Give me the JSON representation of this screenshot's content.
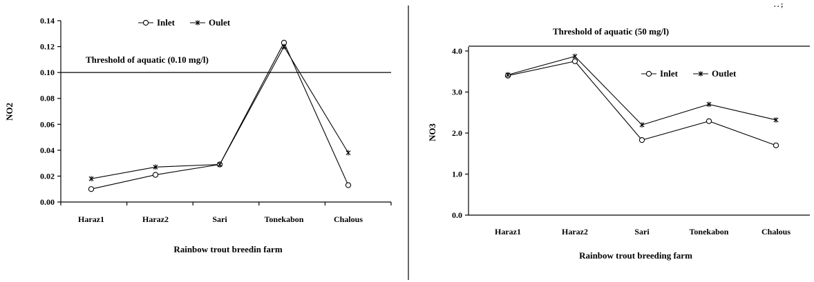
{
  "corner_mark": ". . ;",
  "chart_data": [
    {
      "type": "line",
      "categories": [
        "Haraz1",
        "Haraz2",
        "Sari",
        "Tonekabon",
        "Chalous"
      ],
      "series": [
        {
          "name": "Inlet",
          "marker": "circle",
          "values": [
            0.01,
            0.021,
            0.029,
            0.123,
            0.013
          ]
        },
        {
          "name": "Oulet",
          "marker": "x",
          "values": [
            0.018,
            0.027,
            0.029,
            0.12,
            0.038
          ]
        }
      ],
      "ylabel": "NO2",
      "xlabel": "Rainbow trout breedin farm",
      "ylim": [
        0,
        0.14
      ],
      "yticks": [
        "0.00",
        "0.02",
        "0.04",
        "0.06",
        "0.08",
        "0.10",
        "0.12",
        "0.14"
      ],
      "threshold": {
        "value": 0.1,
        "label": "Threshold of aquatic (0.10 mg/l)"
      },
      "legend_position": "top",
      "grid": false,
      "line_color": "#000000"
    },
    {
      "type": "line",
      "categories": [
        "Haraz1",
        "Haraz2",
        "Sari",
        "Tonekabon",
        "Chalous"
      ],
      "series": [
        {
          "name": "Inlet",
          "marker": "circle",
          "values": [
            3.4,
            3.75,
            1.83,
            2.29,
            1.7
          ]
        },
        {
          "name": "Outlet",
          "marker": "x",
          "values": [
            3.42,
            3.87,
            2.2,
            2.7,
            2.32
          ]
        }
      ],
      "ylabel": "NO3",
      "xlabel": "Rainbow trout breeding farm",
      "ylim": [
        0,
        4.0
      ],
      "yticks": [
        "0.0",
        "1.0",
        "2.0",
        "3.0",
        "4.0"
      ],
      "threshold": {
        "label": "Threshold of aquatic (50 mg/l)"
      },
      "legend_position": "top-right",
      "grid": false,
      "line_color": "#000000"
    }
  ]
}
